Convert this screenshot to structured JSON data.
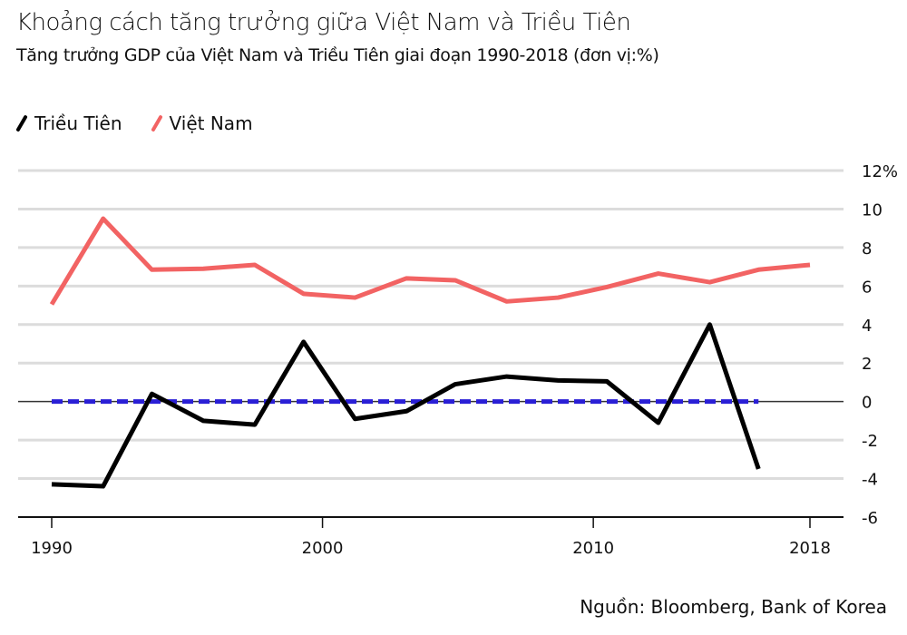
{
  "chart_data": {
    "type": "line",
    "title": "Khoảng cách tăng trưởng giữa Việt Nam và Triều Tiên",
    "subtitle": "Tăng trưởng GDP của Việt Nam và Triều Tiên giai đoạn 1990-2018 (đơn vị:%)",
    "xlabel": "",
    "ylabel": "",
    "xlim": [
      1990,
      2018
    ],
    "ylim": [
      -6,
      12
    ],
    "x_ticks": [
      "1990",
      "2000",
      "2010",
      "2018"
    ],
    "y_ticks": [
      "12%",
      "10",
      "8",
      "6",
      "4",
      "2",
      "0",
      "-2",
      "-4",
      "-6"
    ],
    "grid": true,
    "legend_position": "top-left",
    "series": [
      {
        "name": "Triều Tiên",
        "color": "#000000",
        "x": [
          1990,
          1991.9,
          1993.7,
          1995.6,
          1997.5,
          1999.3,
          2001.2,
          2003.1,
          2004.9,
          2006.8,
          2008.7,
          2010.5,
          2012.4,
          2014.3,
          2016.1
        ],
        "values": [
          -4.3,
          -4.4,
          0.4,
          -1.0,
          -1.2,
          3.1,
          -0.9,
          -0.5,
          0.9,
          1.3,
          1.1,
          1.05,
          -1.1,
          4.0,
          -3.5
        ]
      },
      {
        "name": "Việt Nam",
        "color": "#f26363",
        "x": [
          1990,
          1991.9,
          1993.7,
          1995.6,
          1997.5,
          1999.3,
          2001.2,
          2003.1,
          2004.9,
          2006.8,
          2008.7,
          2010.5,
          2012.4,
          2014.3,
          2016.1,
          2018
        ],
        "values": [
          5.05,
          9.5,
          6.85,
          6.9,
          7.1,
          5.6,
          5.4,
          6.4,
          6.3,
          5.2,
          5.4,
          5.95,
          6.65,
          6.2,
          6.85,
          7.1
        ]
      }
    ],
    "reference_line": {
      "y": 0,
      "x_range": [
        1990,
        2016.1
      ],
      "color": "#2a1fd6",
      "style": "dashed"
    },
    "source": "Nguồn: Bloomberg, Bank of Korea"
  }
}
